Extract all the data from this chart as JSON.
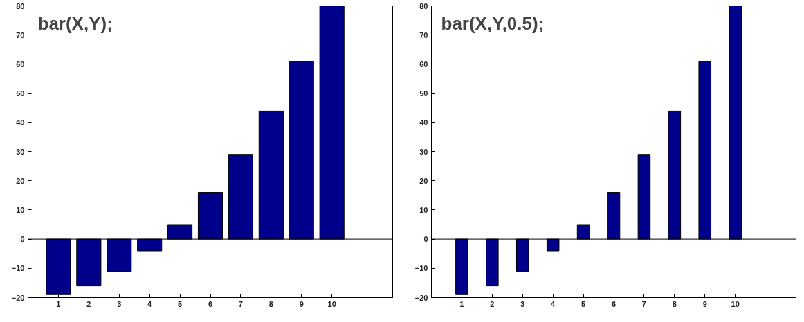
{
  "chart_data": [
    {
      "type": "bar",
      "annotations": [
        "bar(X,Y);"
      ],
      "x": [
        1,
        2,
        3,
        4,
        5,
        6,
        7,
        8,
        9,
        10
      ],
      "values": [
        -19,
        -16,
        -11,
        -4,
        5,
        16,
        29,
        44,
        61,
        80
      ],
      "color": "#00008b",
      "xlim": [
        0,
        12
      ],
      "xticks": [
        1,
        2,
        3,
        4,
        5,
        6,
        7,
        8,
        9,
        10
      ],
      "ylim": [
        -20,
        80
      ],
      "yticks": [
        -20,
        -10,
        0,
        10,
        20,
        30,
        40,
        50,
        60,
        70,
        80
      ]
    },
    {
      "type": "bar",
      "annotations": [
        "bar(X,Y,0.5);"
      ],
      "x": [
        1,
        2,
        3,
        4,
        5,
        6,
        7,
        8,
        9,
        10
      ],
      "values": [
        -19,
        -16,
        -11,
        -4,
        5,
        16,
        29,
        44,
        61,
        80
      ],
      "color": "#00008b",
      "xlim": [
        0,
        12
      ],
      "xticks": [
        1,
        2,
        3,
        4,
        5,
        6,
        7,
        8,
        9,
        10
      ],
      "ylim": [
        -20,
        80
      ],
      "yticks": [
        -20,
        -10,
        0,
        10,
        20,
        30,
        40,
        50,
        60,
        70,
        80
      ]
    }
  ]
}
